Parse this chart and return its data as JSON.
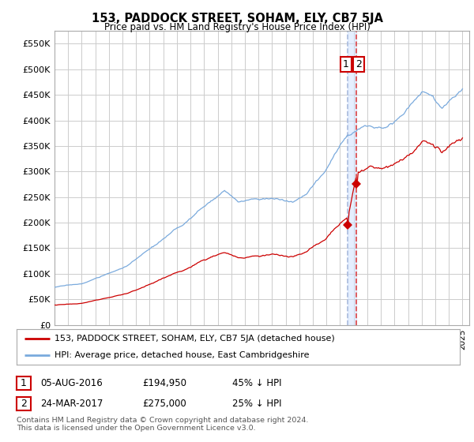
{
  "title": "153, PADDOCK STREET, SOHAM, ELY, CB7 5JA",
  "subtitle": "Price paid vs. HM Land Registry's House Price Index (HPI)",
  "background_color": "#ffffff",
  "grid_color": "#cccccc",
  "hpi_color": "#7aaadd",
  "price_color": "#cc0000",
  "vline1_color": "#aabbdd",
  "vline2_color": "#dd4444",
  "ylim": [
    0,
    575000
  ],
  "yticks": [
    0,
    50000,
    100000,
    150000,
    200000,
    250000,
    300000,
    350000,
    400000,
    450000,
    500000,
    550000
  ],
  "ytick_labels": [
    "£0",
    "£50K",
    "£100K",
    "£150K",
    "£200K",
    "£250K",
    "£300K",
    "£350K",
    "£400K",
    "£450K",
    "£500K",
    "£550K"
  ],
  "sale1_price": 194950,
  "sale1_x": 2016.58,
  "sale2_price": 275000,
  "sale2_x": 2017.22,
  "legend_house_label": "153, PADDOCK STREET, SOHAM, ELY, CB7 5JA (detached house)",
  "legend_hpi_label": "HPI: Average price, detached house, East Cambridgeshire",
  "table_row1": [
    "1",
    "05-AUG-2016",
    "£194,950",
    "45% ↓ HPI"
  ],
  "table_row2": [
    "2",
    "24-MAR-2017",
    "£275,000",
    "25% ↓ HPI"
  ],
  "footer": "Contains HM Land Registry data © Crown copyright and database right 2024.\nThis data is licensed under the Open Government Licence v3.0.",
  "xmin": 1995.0,
  "xmax": 2025.5
}
